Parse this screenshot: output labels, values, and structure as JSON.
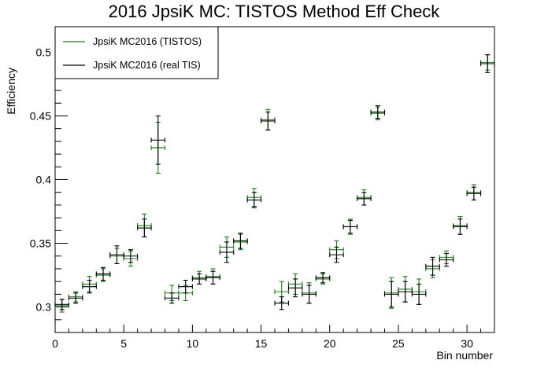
{
  "chart_data": {
    "type": "scatter",
    "title": "2016 JpsiK MC: TISTOS Method Eff Check",
    "xlabel": "Bin number",
    "ylabel": "Efficiency",
    "xlim": [
      0,
      32
    ],
    "ylim": [
      0.28,
      0.52
    ],
    "x_ticks": [
      "0",
      "5",
      "10",
      "15",
      "20",
      "25",
      "30"
    ],
    "y_ticks": [
      "0.3",
      "0.35",
      "0.4",
      "0.45",
      "0.5"
    ],
    "grid": false,
    "legend_position": "top-left",
    "series": [
      {
        "name": "JpsiK MC2016 (TISTOS)",
        "color": "#1f7a1f",
        "points": [
          {
            "x": 0.5,
            "y": 0.301,
            "err": 0.005
          },
          {
            "x": 1.5,
            "y": 0.308,
            "err": 0.004
          },
          {
            "x": 2.5,
            "y": 0.318,
            "err": 0.006
          },
          {
            "x": 3.5,
            "y": 0.325,
            "err": 0.005
          },
          {
            "x": 4.5,
            "y": 0.34,
            "err": 0.006
          },
          {
            "x": 5.5,
            "y": 0.338,
            "err": 0.006
          },
          {
            "x": 6.5,
            "y": 0.364,
            "err": 0.009
          },
          {
            "x": 7.5,
            "y": 0.425,
            "err": 0.02
          },
          {
            "x": 8.5,
            "y": 0.311,
            "err": 0.006
          },
          {
            "x": 9.5,
            "y": 0.311,
            "err": 0.006
          },
          {
            "x": 10.5,
            "y": 0.323,
            "err": 0.005
          },
          {
            "x": 11.5,
            "y": 0.324,
            "err": 0.006
          },
          {
            "x": 12.5,
            "y": 0.347,
            "err": 0.008
          },
          {
            "x": 13.5,
            "y": 0.351,
            "err": 0.006
          },
          {
            "x": 14.5,
            "y": 0.386,
            "err": 0.007
          },
          {
            "x": 15.5,
            "y": 0.447,
            "err": 0.008
          },
          {
            "x": 16.5,
            "y": 0.312,
            "err": 0.008
          },
          {
            "x": 17.5,
            "y": 0.318,
            "err": 0.008
          },
          {
            "x": 18.5,
            "y": 0.311,
            "err": 0.008
          },
          {
            "x": 19.5,
            "y": 0.322,
            "err": 0.004
          },
          {
            "x": 20.5,
            "y": 0.345,
            "err": 0.007
          },
          {
            "x": 21.5,
            "y": 0.363,
            "err": 0.006
          },
          {
            "x": 22.5,
            "y": 0.386,
            "err": 0.006
          },
          {
            "x": 23.5,
            "y": 0.452,
            "err": 0.005
          },
          {
            "x": 24.5,
            "y": 0.311,
            "err": 0.012
          },
          {
            "x": 25.5,
            "y": 0.314,
            "err": 0.01
          },
          {
            "x": 26.5,
            "y": 0.312,
            "err": 0.01
          },
          {
            "x": 27.5,
            "y": 0.33,
            "err": 0.007
          },
          {
            "x": 28.5,
            "y": 0.339,
            "err": 0.005
          },
          {
            "x": 29.5,
            "y": 0.364,
            "err": 0.007
          },
          {
            "x": 30.5,
            "y": 0.39,
            "err": 0.006
          },
          {
            "x": 31.5,
            "y": 0.492,
            "err": 0.006
          }
        ]
      },
      {
        "name": "JpsiK MC2016 (real TIS)",
        "color": "#000000",
        "points": [
          {
            "x": 0.5,
            "y": 0.302,
            "err": 0.004
          },
          {
            "x": 1.5,
            "y": 0.307,
            "err": 0.004
          },
          {
            "x": 2.5,
            "y": 0.316,
            "err": 0.005
          },
          {
            "x": 3.5,
            "y": 0.326,
            "err": 0.005
          },
          {
            "x": 4.5,
            "y": 0.341,
            "err": 0.007
          },
          {
            "x": 5.5,
            "y": 0.34,
            "err": 0.005
          },
          {
            "x": 6.5,
            "y": 0.362,
            "err": 0.007
          },
          {
            "x": 7.5,
            "y": 0.431,
            "err": 0.019
          },
          {
            "x": 8.5,
            "y": 0.307,
            "err": 0.004
          },
          {
            "x": 9.5,
            "y": 0.316,
            "err": 0.005
          },
          {
            "x": 10.5,
            "y": 0.322,
            "err": 0.004
          },
          {
            "x": 11.5,
            "y": 0.323,
            "err": 0.005
          },
          {
            "x": 12.5,
            "y": 0.343,
            "err": 0.008
          },
          {
            "x": 13.5,
            "y": 0.352,
            "err": 0.006
          },
          {
            "x": 14.5,
            "y": 0.384,
            "err": 0.006
          },
          {
            "x": 15.5,
            "y": 0.446,
            "err": 0.007
          },
          {
            "x": 16.5,
            "y": 0.303,
            "err": 0.005
          },
          {
            "x": 17.5,
            "y": 0.315,
            "err": 0.007
          },
          {
            "x": 18.5,
            "y": 0.31,
            "err": 0.007
          },
          {
            "x": 19.5,
            "y": 0.323,
            "err": 0.004
          },
          {
            "x": 20.5,
            "y": 0.341,
            "err": 0.006
          },
          {
            "x": 21.5,
            "y": 0.363,
            "err": 0.005
          },
          {
            "x": 22.5,
            "y": 0.385,
            "err": 0.005
          },
          {
            "x": 23.5,
            "y": 0.453,
            "err": 0.005
          },
          {
            "x": 24.5,
            "y": 0.31,
            "err": 0.01
          },
          {
            "x": 25.5,
            "y": 0.312,
            "err": 0.008
          },
          {
            "x": 26.5,
            "y": 0.31,
            "err": 0.008
          },
          {
            "x": 27.5,
            "y": 0.332,
            "err": 0.007
          },
          {
            "x": 28.5,
            "y": 0.337,
            "err": 0.005
          },
          {
            "x": 29.5,
            "y": 0.363,
            "err": 0.006
          },
          {
            "x": 30.5,
            "y": 0.389,
            "err": 0.005
          },
          {
            "x": 31.5,
            "y": 0.491,
            "err": 0.007
          }
        ]
      }
    ]
  }
}
